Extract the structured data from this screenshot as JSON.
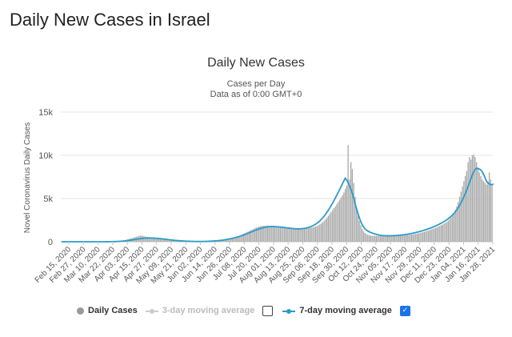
{
  "page": {
    "heading": "Daily New Cases in Israel"
  },
  "chart_data": {
    "type": "bar",
    "title": "Daily New Cases",
    "subtitle": "Cases per Day",
    "subtitle2": "Data as of 0:00 GMT+0",
    "ylabel": "Novel Coronavirus Daily Cases",
    "ylim": [
      0,
      15000
    ],
    "yticks": [
      0,
      5000,
      10000,
      15000
    ],
    "ytick_labels": [
      "0",
      "5k",
      "10k",
      "15k"
    ],
    "grid": true,
    "xlabels": [
      "Feb 15, 2020",
      "Feb 27, 2020",
      "Mar 10, 2020",
      "Mar 22, 2020",
      "Apr 03, 2020",
      "Apr 15, 2020",
      "Apr 27, 2020",
      "May 09, 2020",
      "May 21, 2020",
      "Jun 02, 2020",
      "Jun 14, 2020",
      "Jun 26, 2020",
      "Jul 08, 2020",
      "Jul 20, 2020",
      "Aug 01, 2020",
      "Aug 13, 2020",
      "Aug 25, 2020",
      "Sep 06, 2020",
      "Sep 18, 2020",
      "Sep 30, 2020",
      "Oct 12, 2020",
      "Oct 24, 2020",
      "Nov 05, 2020",
      "Nov 17, 2020",
      "Nov 29, 2020",
      "Dec 11, 2020",
      "Dec 23, 2020",
      "Jan 04, 2021",
      "Jan 16, 2021",
      "Jan 28, 2021"
    ],
    "series": [
      {
        "name": "Daily Cases",
        "color": "#a6a6a6",
        "values": [
          0,
          0,
          0,
          0,
          0,
          0,
          0,
          0,
          0,
          0,
          0,
          0,
          0,
          0,
          0,
          0,
          0,
          0,
          0,
          0,
          0,
          0,
          0,
          0,
          0,
          1,
          0,
          1,
          2,
          2,
          3,
          5,
          6,
          8,
          10,
          15,
          20,
          25,
          35,
          45,
          55,
          70,
          90,
          110,
          140,
          180,
          230,
          280,
          330,
          380,
          430,
          480,
          530,
          580,
          630,
          680,
          700,
          690,
          660,
          620,
          580,
          560,
          540,
          520,
          500,
          480,
          460,
          440,
          420,
          400,
          380,
          360,
          340,
          320,
          300,
          280,
          260,
          240,
          220,
          200,
          180,
          160,
          140,
          120,
          110,
          100,
          90,
          80,
          70,
          60,
          50,
          45,
          40,
          35,
          30,
          30,
          30,
          30,
          30,
          30,
          30,
          35,
          40,
          45,
          50,
          55,
          60,
          70,
          80,
          90,
          100,
          120,
          140,
          160,
          180,
          200,
          230,
          260,
          290,
          320,
          360,
          400,
          450,
          500,
          560,
          620,
          690,
          760,
          840,
          920,
          1000,
          1080,
          1160,
          1240,
          1320,
          1400,
          1480,
          1560,
          1640,
          1700,
          1760,
          1800,
          1820,
          1840,
          1850,
          1860,
          1860,
          1850,
          1840,
          1830,
          1820,
          1810,
          1800,
          1790,
          1780,
          1760,
          1740,
          1720,
          1700,
          1680,
          1660,
          1640,
          1620,
          1600,
          1580,
          1560,
          1540,
          1520,
          1510,
          1500,
          1500,
          1500,
          1510,
          1520,
          1540,
          1560,
          1590,
          1620,
          1660,
          1700,
          1760,
          1820,
          1900,
          2000,
          2120,
          2260,
          2420,
          2600,
          2800,
          3000,
          3220,
          3440,
          3660,
          3880,
          4100,
          4350,
          4600,
          4850,
          5100,
          5400,
          5700,
          6100,
          6500,
          11200,
          7200,
          9200,
          8400,
          6800,
          5200,
          3800,
          3000,
          2400,
          1900,
          1500,
          1200,
          1000,
          900,
          820,
          760,
          720,
          700,
          690,
          680,
          680,
          680,
          680,
          680,
          680,
          680,
          680,
          680,
          680,
          680,
          680,
          680,
          680,
          680,
          690,
          700,
          710,
          720,
          730,
          740,
          750,
          760,
          770,
          790,
          810,
          830,
          850,
          880,
          910,
          940,
          980,
          1020,
          1060,
          1100,
          1150,
          1200,
          1250,
          1300,
          1360,
          1420,
          1480,
          1540,
          1600,
          1680,
          1760,
          1840,
          1920,
          2000,
          2100,
          2200,
          2300,
          2450,
          2600,
          2800,
          3000,
          3300,
          3700,
          4100,
          4600,
          5200,
          5800,
          6400,
          7000,
          7600,
          8200,
          9200,
          9800,
          9500,
          10000,
          10100,
          9800,
          9200,
          8500,
          8000,
          7600,
          7200,
          7000,
          6800,
          6600,
          7000,
          8000,
          7200,
          6600
        ]
      },
      {
        "name": "3-day moving average",
        "color": "#cccccc",
        "enabled": false
      },
      {
        "name": "7-day moving average",
        "color": "#2b9bc9",
        "enabled": true,
        "values": [
          0,
          0,
          0,
          0,
          0,
          0,
          0,
          0,
          0,
          0,
          0,
          0,
          0,
          0,
          0,
          0,
          0,
          0,
          0,
          0,
          0,
          0,
          0,
          0,
          0,
          0,
          0,
          1,
          1,
          1,
          2,
          3,
          4,
          6,
          8,
          11,
          14,
          18,
          23,
          29,
          37,
          46,
          57,
          70,
          86,
          104,
          124,
          145,
          167,
          190,
          214,
          238,
          262,
          286,
          310,
          334,
          358,
          380,
          400,
          414,
          424,
          430,
          432,
          430,
          426,
          420,
          412,
          402,
          390,
          376,
          360,
          342,
          323,
          303,
          283,
          263,
          243,
          223,
          203,
          184,
          166,
          149,
          134,
          121,
          109,
          98,
          88,
          79,
          71,
          63,
          56,
          50,
          45,
          40,
          36,
          33,
          31,
          30,
          30,
          31,
          33,
          36,
          40,
          45,
          51,
          58,
          66,
          75,
          86,
          98,
          112,
          128,
          146,
          166,
          188,
          212,
          238,
          266,
          296,
          328,
          362,
          398,
          436,
          477,
          521,
          568,
          618,
          671,
          727,
          785,
          845,
          907,
          971,
          1036,
          1102,
          1168,
          1234,
          1299,
          1363,
          1425,
          1484,
          1539,
          1589,
          1633,
          1670,
          1700,
          1722,
          1738,
          1748,
          1753,
          1753,
          1749,
          1741,
          1730,
          1716,
          1700,
          1682,
          1663,
          1643,
          1622,
          1601,
          1580,
          1560,
          1541,
          1524,
          1510,
          1500,
          1495,
          1495,
          1500,
          1510,
          1526,
          1548,
          1576,
          1612,
          1656,
          1709,
          1772,
          1846,
          1932,
          2031,
          2144,
          2272,
          2416,
          2577,
          2756,
          2953,
          3168,
          3400,
          3648,
          3910,
          4184,
          4470,
          4766,
          5071,
          5384,
          5706,
          6034,
          6367,
          6703,
          7038,
          7371,
          7130,
          6817,
          6481,
          6100,
          5610,
          5020,
          4406,
          3816,
          3262,
          2758,
          2322,
          1966,
          1692,
          1490,
          1342,
          1232,
          1146,
          1074,
          1010,
          952,
          900,
          854,
          814,
          780,
          752,
          730,
          713,
          701,
          694,
          690,
          690,
          692,
          696,
          702,
          710,
          720,
          732,
          746,
          762,
          780,
          800,
          822,
          846,
          872,
          900,
          930,
          962,
          996,
          1032,
          1070,
          1110,
          1152,
          1196,
          1242,
          1290,
          1340,
          1392,
          1446,
          1502,
          1560,
          1620,
          1684,
          1752,
          1824,
          1900,
          1980,
          2064,
          2152,
          2244,
          2340,
          2442,
          2552,
          2672,
          2802,
          2946,
          3106,
          3284,
          3482,
          3702,
          3946,
          4216,
          4514,
          4840,
          5194,
          5574,
          5978,
          6402,
          6842,
          7290,
          7737,
          8080,
          8350,
          8500,
          8480,
          8400,
          8300,
          8100,
          7800,
          7400,
          7000,
          6800,
          6700,
          6600,
          6600,
          6700
        ]
      }
    ]
  },
  "legend": {
    "items": [
      {
        "label": "Daily Cases",
        "color": "#999999"
      },
      {
        "label": "3-day moving average",
        "color": "#cccccc",
        "checked": false
      },
      {
        "label": "7-day moving average",
        "color": "#2b9bc9",
        "checked": true
      }
    ]
  }
}
